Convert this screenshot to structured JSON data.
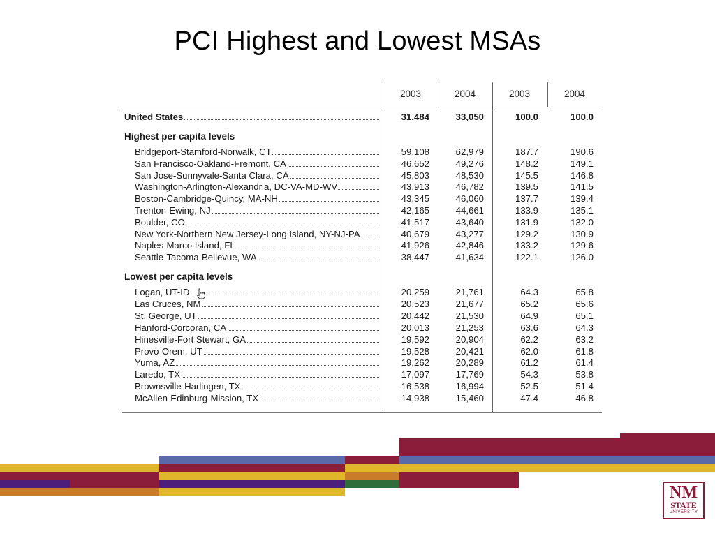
{
  "slide": {
    "title": "PCI Highest and Lowest MSAs"
  },
  "table": {
    "headers": [
      "2003",
      "2004",
      "2003",
      "2004"
    ],
    "united_states": {
      "label": "United States",
      "values": [
        "31,484",
        "33,050",
        "100.0",
        "100.0"
      ]
    },
    "highest_head": "Highest per capita levels",
    "highest": [
      {
        "label": "Bridgeport-Stamford-Norwalk, CT",
        "values": [
          "59,108",
          "62,979",
          "187.7",
          "190.6"
        ]
      },
      {
        "label": "San Francisco-Oakland-Fremont, CA",
        "values": [
          "46,652",
          "49,276",
          "148.2",
          "149.1"
        ]
      },
      {
        "label": "San Jose-Sunnyvale-Santa Clara, CA",
        "values": [
          "45,803",
          "48,530",
          "145.5",
          "146.8"
        ]
      },
      {
        "label": "Washington-Arlington-Alexandria, DC-VA-MD-WV",
        "values": [
          "43,913",
          "46,782",
          "139.5",
          "141.5"
        ]
      },
      {
        "label": "Boston-Cambridge-Quincy, MA-NH",
        "values": [
          "43,345",
          "46,060",
          "137.7",
          "139.4"
        ]
      },
      {
        "label": "Trenton-Ewing, NJ",
        "values": [
          "42,165",
          "44,661",
          "133.9",
          "135.1"
        ]
      },
      {
        "label": "Boulder, CO",
        "values": [
          "41,517",
          "43,640",
          "131.9",
          "132.0"
        ]
      },
      {
        "label": "New York-Northern New Jersey-Long Island, NY-NJ-PA",
        "values": [
          "40,679",
          "43,277",
          "129.2",
          "130.9"
        ]
      },
      {
        "label": "Naples-Marco Island, FL",
        "values": [
          "41,926",
          "42,846",
          "133.2",
          "129.6"
        ]
      },
      {
        "label": "Seattle-Tacoma-Bellevue, WA",
        "values": [
          "38,447",
          "41,634",
          "122.1",
          "126.0"
        ]
      }
    ],
    "lowest_head": "Lowest per capita levels",
    "lowest": [
      {
        "label": "Logan, UT-ID",
        "values": [
          "20,259",
          "21,761",
          "64.3",
          "65.8"
        ]
      },
      {
        "label": "Las Cruces, NM",
        "values": [
          "20,523",
          "21,677",
          "65.2",
          "65.6"
        ]
      },
      {
        "label": "St. George, UT",
        "values": [
          "20,442",
          "21,530",
          "64.9",
          "65.1"
        ]
      },
      {
        "label": "Hanford-Corcoran, CA",
        "values": [
          "20,013",
          "21,253",
          "63.6",
          "64.3"
        ]
      },
      {
        "label": "Hinesville-Fort Stewart, GA",
        "values": [
          "19,592",
          "20,904",
          "62.2",
          "63.2"
        ]
      },
      {
        "label": "Provo-Orem, UT",
        "values": [
          "19,528",
          "20,421",
          "62.0",
          "61.8"
        ]
      },
      {
        "label": "Yuma, AZ",
        "values": [
          "19,262",
          "20,289",
          "61.2",
          "61.4"
        ]
      },
      {
        "label": "Laredo, TX",
        "values": [
          "17,097",
          "17,769",
          "54.3",
          "53.8"
        ]
      },
      {
        "label": "Brownsville-Harlingen, TX",
        "values": [
          "16,538",
          "16,994",
          "52.5",
          "51.4"
        ]
      },
      {
        "label": "McAllen-Edinburg-Mission, TX",
        "values": [
          "14,938",
          "15,460",
          "47.4",
          "46.8"
        ]
      }
    ]
  },
  "logo": {
    "line1": "NM",
    "line2": "STATE",
    "line3": "UNIVERSITY"
  },
  "colors": {
    "crimson": "#8b1c3a",
    "gold": "#e0b62a",
    "purple": "#4e1f7a",
    "slate_blue": "#5a6aa8",
    "orange": "#c97c2a",
    "green": "#2f6e3a"
  },
  "icons": {
    "cursor": "hand-cursor-icon"
  }
}
